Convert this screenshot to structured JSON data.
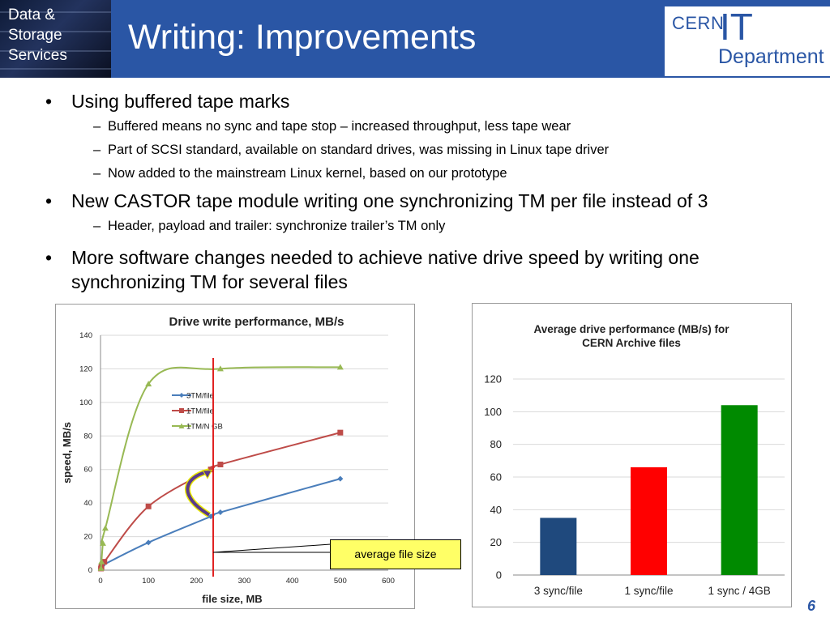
{
  "header": {
    "logo_lines": [
      "Data &",
      "Storage",
      "Services"
    ],
    "title": "Writing: Improvements",
    "cern_logo": {
      "cern": "CERN",
      "it": "IT",
      "department": "Department"
    },
    "colors": {
      "bar": "#2a56a5",
      "text": "#ffffff"
    }
  },
  "bullets": [
    {
      "text": "Using buffered tape marks",
      "subs": [
        "Buffered means no sync and tape stop – increased throughput, less tape wear",
        "Part of SCSI standard, available on standard drives, was missing in Linux tape driver",
        "Now added to the mainstream Linux kernel, based on our prototype"
      ]
    },
    {
      "text": "New CASTOR tape module writing one synchronizing TM per file instead of 3",
      "subs": [
        "Header, payload and trailer: synchronize trailer’s TM only"
      ]
    },
    {
      "text": "More software changes needed to achieve native drive speed by writing one synchronizing TM for several files",
      "subs": []
    }
  ],
  "chart_left": {
    "type": "line",
    "title": "Drive write performance, MB/s",
    "xlabel": "file size, MB",
    "ylabel": "speed, MB/s",
    "xlim": [
      0,
      600
    ],
    "ylim": [
      0,
      140
    ],
    "x_ticks": [
      0,
      100,
      200,
      300,
      400,
      500,
      600
    ],
    "y_ticks": [
      0,
      20,
      40,
      60,
      80,
      100,
      120,
      140
    ],
    "grid": "horizontal",
    "legend_position": "center",
    "series": [
      {
        "name": "3TM/file",
        "color": "#4a7ebb",
        "marker": "diamond",
        "points": [
          [
            1,
            1
          ],
          [
            2,
            2
          ],
          [
            5,
            3
          ],
          [
            100,
            16.5
          ],
          [
            230,
            32
          ],
          [
            250,
            34.5
          ],
          [
            500,
            54.5
          ]
        ]
      },
      {
        "name": "1TM/file",
        "color": "#be4b48",
        "marker": "square",
        "points": [
          [
            1,
            1
          ],
          [
            2,
            2
          ],
          [
            8,
            5
          ],
          [
            100,
            38
          ],
          [
            230,
            60
          ],
          [
            250,
            63
          ],
          [
            500,
            82
          ]
        ]
      },
      {
        "name": "1TM/N GB",
        "color": "#98b954",
        "marker": "triangle",
        "points": [
          [
            1,
            1
          ],
          [
            2,
            5
          ],
          [
            5,
            16
          ],
          [
            10,
            25
          ],
          [
            100,
            111
          ],
          [
            250,
            120
          ],
          [
            500,
            121
          ]
        ]
      }
    ],
    "marker_line_x": 235,
    "arrow": {
      "from": [
        230,
        32
      ],
      "to": [
        230,
        60
      ],
      "color": "#5a3a8a"
    },
    "callout": "average file size"
  },
  "chart_right": {
    "type": "bar",
    "title_lines": [
      "Average drive performance (MB/s) for",
      "CERN Archive files"
    ],
    "categories": [
      "3 sync/file",
      "1 sync/file",
      "1 sync / 4GB"
    ],
    "values": [
      35,
      66,
      104
    ],
    "colors": [
      "#1f497d",
      "#ff0000",
      "#008a00"
    ],
    "ylim": [
      0,
      120
    ],
    "y_ticks": [
      0,
      20,
      40,
      60,
      80,
      100,
      120
    ],
    "grid": "horizontal"
  },
  "page_number": "6"
}
